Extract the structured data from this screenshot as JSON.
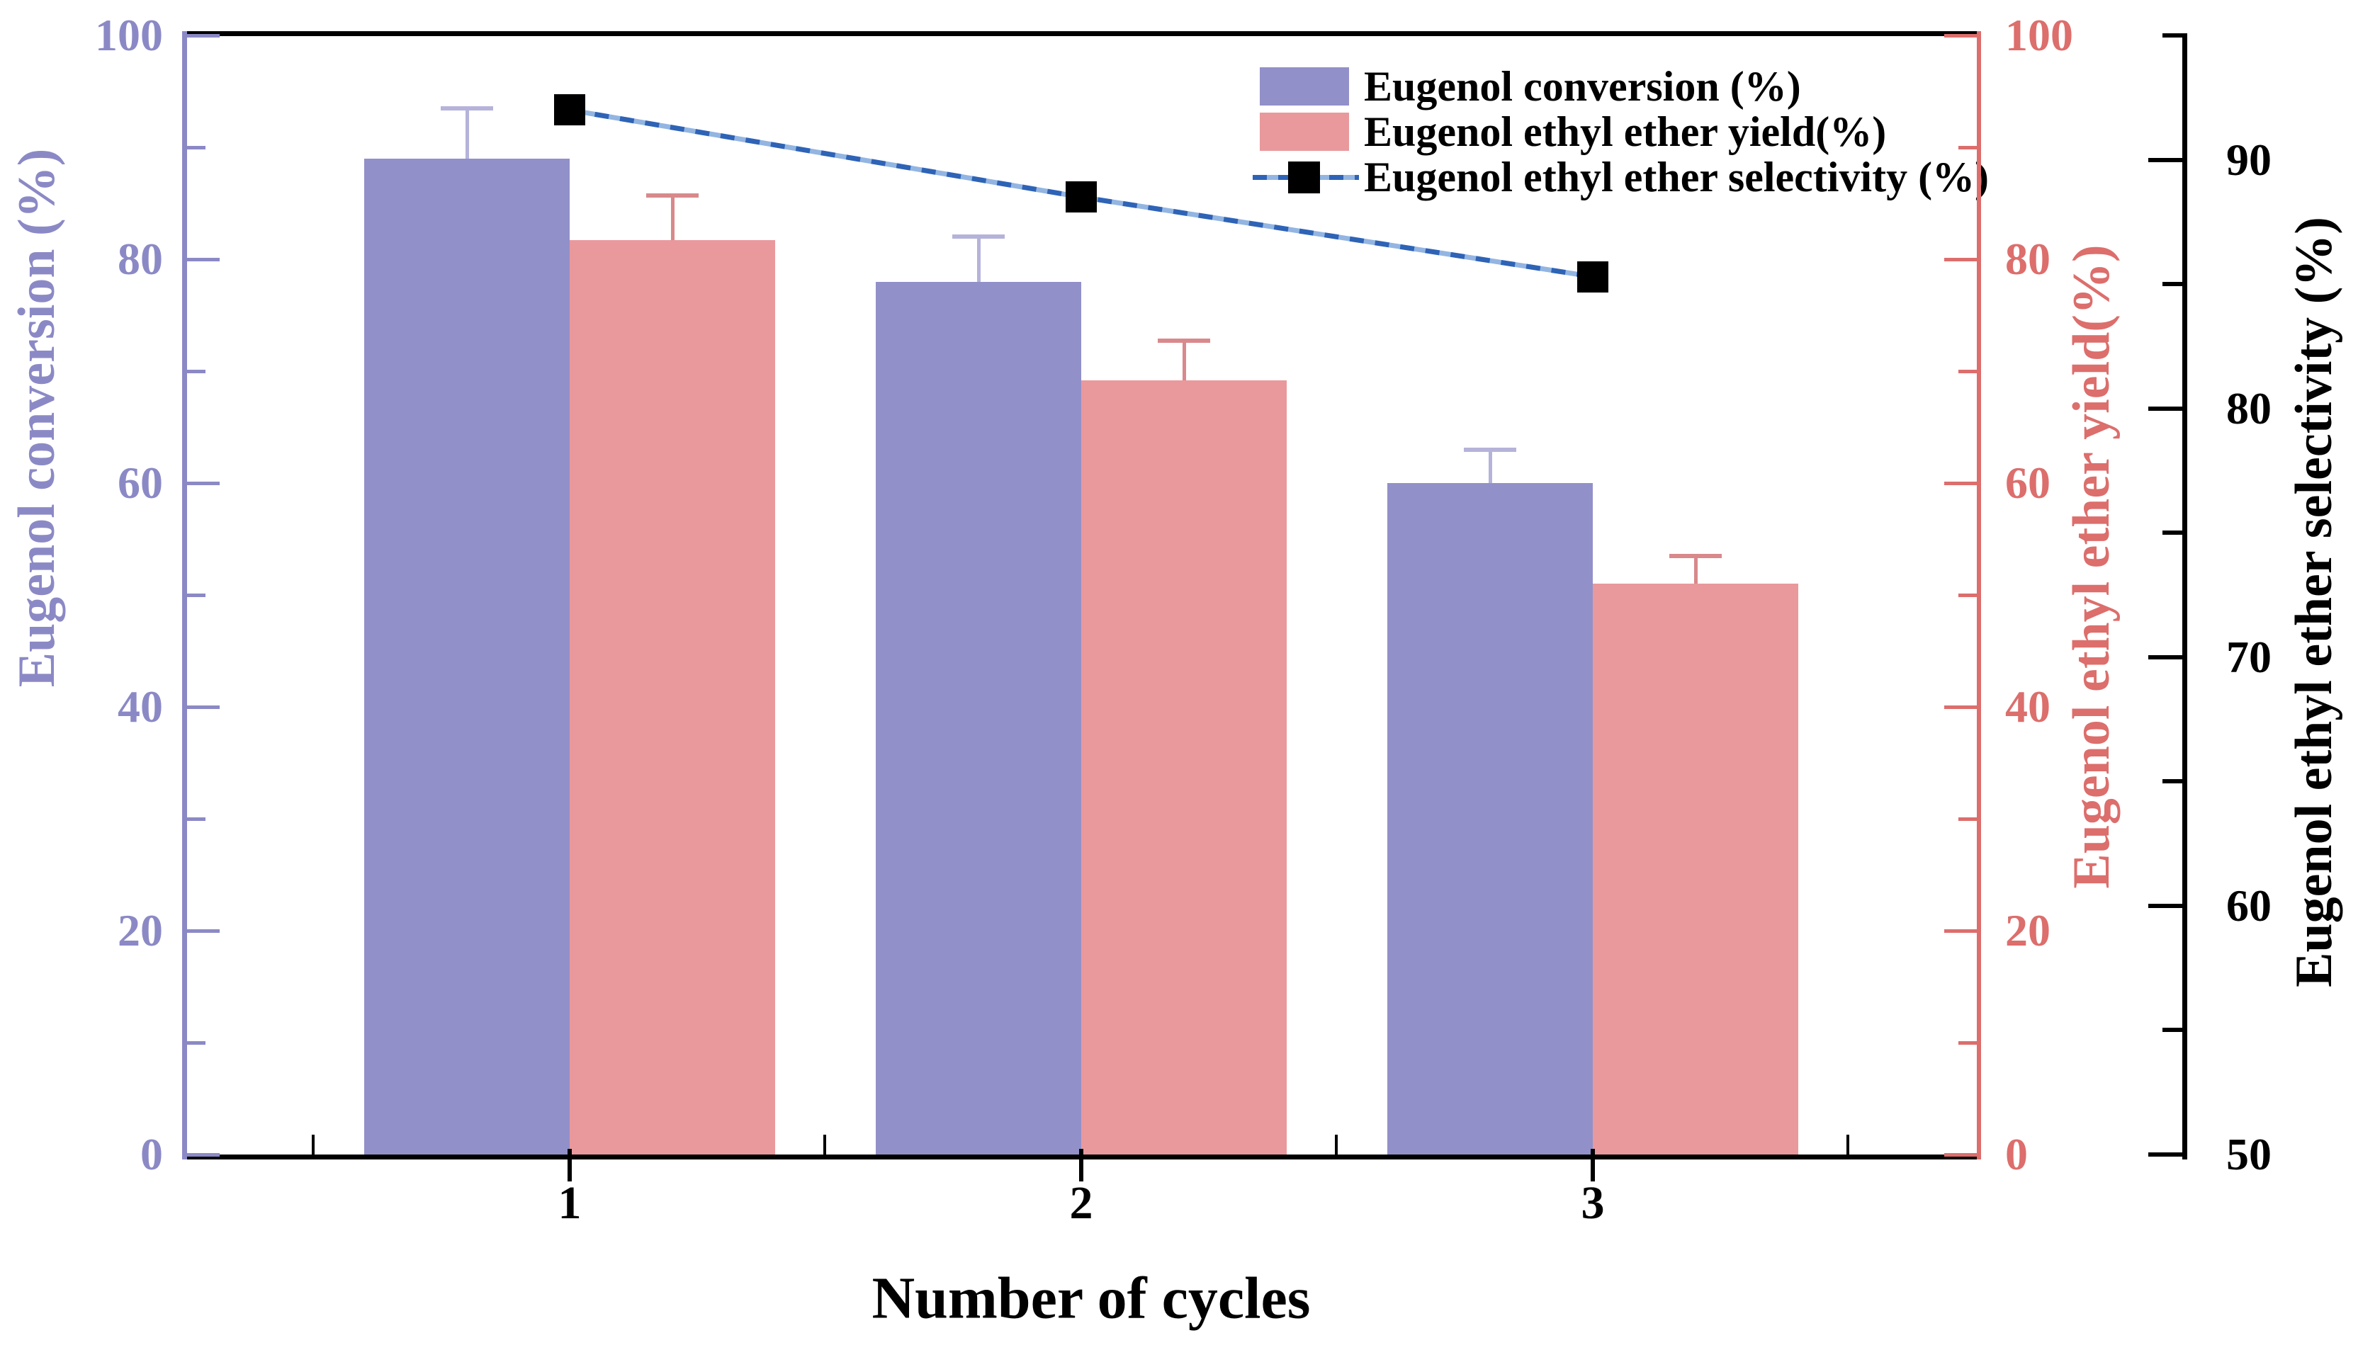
{
  "figure": {
    "background": "#ffffff"
  },
  "chart_data": {
    "type": "bar",
    "subtype": "grouped bars with overlaid line markers, three y-axes",
    "categories": [
      "1",
      "2",
      "3"
    ],
    "xlabel": "Number of cycles",
    "grid": false,
    "legend_position": "top-right inside plot",
    "series": [
      {
        "name": "Eugenol conversion (%)",
        "type": "bar",
        "axis": "left",
        "color": "#9290c9",
        "error_color": "#b5b3da",
        "values": [
          89,
          78,
          60
        ],
        "errors": [
          4.5,
          4,
          3
        ]
      },
      {
        "name": "Eugenol ethyl ether yield(%)",
        "type": "bar",
        "axis": "right_inner",
        "color": "#e9999c",
        "error_color": "#d9898b",
        "values": [
          81.7,
          69.2,
          51
        ],
        "errors": [
          4,
          3.5,
          2.5
        ]
      },
      {
        "name": "Eugenol ethyl ether selectivity (%)",
        "type": "line",
        "axis": "right_outer",
        "marker": "square",
        "marker_color": "#000000",
        "line_color_dark": "#2e63b6",
        "line_color_light": "#93b5e2",
        "line_style": "dashed",
        "values": [
          92,
          88.5,
          85.3
        ]
      }
    ],
    "axes": {
      "left": {
        "label": "Eugenol conversion (%)",
        "color": "#8b89c5",
        "min": 0,
        "max": 100,
        "major_step": 20,
        "minor_step": 10,
        "tick_labels": [
          "0",
          "20",
          "40",
          "60",
          "80",
          "100"
        ]
      },
      "right_inner": {
        "label": "Eugenol ethyl ether yield(%)",
        "color": "#dc6e6c",
        "min": 0,
        "max": 100,
        "major_step": 20,
        "minor_step": 10,
        "tick_labels": [
          "0",
          "20",
          "40",
          "60",
          "80",
          "100"
        ]
      },
      "right_outer": {
        "label": "Eugenol ethyl ether selectivity (%)",
        "color": "#000000",
        "min": 50,
        "max": 95,
        "major_step": 10,
        "minor_step": 5,
        "tick_labels": [
          "50",
          "60",
          "70",
          "80",
          "90"
        ]
      },
      "x": {
        "label": "Number of cycles",
        "color": "#000000",
        "tick_labels": [
          "1",
          "2",
          "3"
        ]
      }
    }
  }
}
